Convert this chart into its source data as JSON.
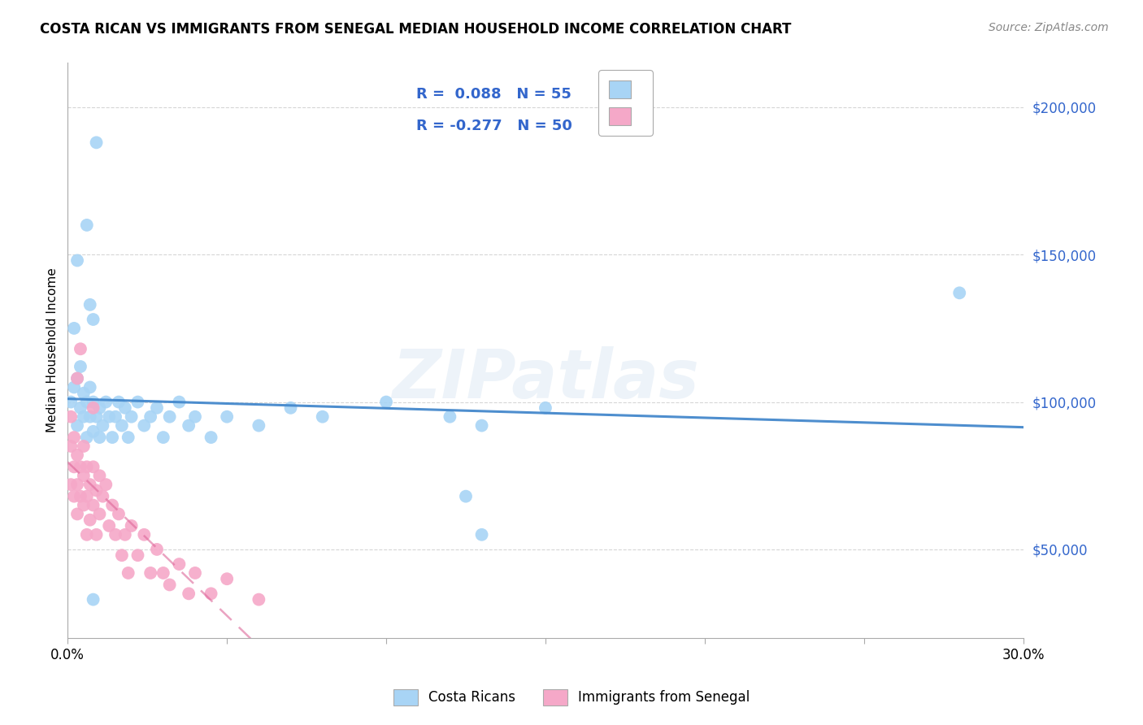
{
  "title": "COSTA RICAN VS IMMIGRANTS FROM SENEGAL MEDIAN HOUSEHOLD INCOME CORRELATION CHART",
  "source": "Source: ZipAtlas.com",
  "ylabel": "Median Household Income",
  "yticks": [
    50000,
    100000,
    150000,
    200000
  ],
  "ytick_labels": [
    "$50,000",
    "$100,000",
    "$150,000",
    "$200,000"
  ],
  "xlim": [
    0.0,
    0.3
  ],
  "ylim": [
    20000,
    215000
  ],
  "legend_r_blue": "R =  0.088",
  "legend_n_blue": "N = 55",
  "legend_r_pink": "R = -0.277",
  "legend_n_pink": "N = 50",
  "blue_color": "#a8d4f5",
  "pink_color": "#f5a8c8",
  "blue_line_color": "#4488cc",
  "pink_line_color": "#dd6699",
  "legend_color": "#3366cc",
  "blue_scatter": [
    [
      0.001,
      100000
    ],
    [
      0.002,
      105000
    ],
    [
      0.002,
      125000
    ],
    [
      0.003,
      92000
    ],
    [
      0.003,
      108000
    ],
    [
      0.004,
      98000
    ],
    [
      0.004,
      112000
    ],
    [
      0.005,
      95000
    ],
    [
      0.005,
      103000
    ],
    [
      0.006,
      88000
    ],
    [
      0.006,
      100000
    ],
    [
      0.007,
      95000
    ],
    [
      0.007,
      105000
    ],
    [
      0.008,
      90000
    ],
    [
      0.008,
      100000
    ],
    [
      0.009,
      95000
    ],
    [
      0.01,
      88000
    ],
    [
      0.01,
      98000
    ],
    [
      0.011,
      92000
    ],
    [
      0.012,
      100000
    ],
    [
      0.013,
      95000
    ],
    [
      0.014,
      88000
    ],
    [
      0.015,
      95000
    ],
    [
      0.016,
      100000
    ],
    [
      0.017,
      92000
    ],
    [
      0.018,
      98000
    ],
    [
      0.019,
      88000
    ],
    [
      0.02,
      95000
    ],
    [
      0.022,
      100000
    ],
    [
      0.024,
      92000
    ],
    [
      0.026,
      95000
    ],
    [
      0.028,
      98000
    ],
    [
      0.03,
      88000
    ],
    [
      0.032,
      95000
    ],
    [
      0.035,
      100000
    ],
    [
      0.038,
      92000
    ],
    [
      0.04,
      95000
    ],
    [
      0.045,
      88000
    ],
    [
      0.05,
      95000
    ],
    [
      0.06,
      92000
    ],
    [
      0.07,
      98000
    ],
    [
      0.08,
      95000
    ],
    [
      0.1,
      100000
    ],
    [
      0.12,
      95000
    ],
    [
      0.13,
      92000
    ],
    [
      0.15,
      98000
    ],
    [
      0.003,
      148000
    ],
    [
      0.006,
      160000
    ],
    [
      0.007,
      133000
    ],
    [
      0.008,
      128000
    ],
    [
      0.28,
      137000
    ],
    [
      0.009,
      188000
    ],
    [
      0.125,
      68000
    ],
    [
      0.008,
      33000
    ],
    [
      0.13,
      55000
    ]
  ],
  "pink_scatter": [
    [
      0.001,
      95000
    ],
    [
      0.001,
      85000
    ],
    [
      0.001,
      72000
    ],
    [
      0.002,
      88000
    ],
    [
      0.002,
      78000
    ],
    [
      0.002,
      68000
    ],
    [
      0.003,
      82000
    ],
    [
      0.003,
      72000
    ],
    [
      0.003,
      62000
    ],
    [
      0.004,
      78000
    ],
    [
      0.004,
      68000
    ],
    [
      0.005,
      85000
    ],
    [
      0.005,
      75000
    ],
    [
      0.005,
      65000
    ],
    [
      0.006,
      78000
    ],
    [
      0.006,
      68000
    ],
    [
      0.006,
      55000
    ],
    [
      0.007,
      72000
    ],
    [
      0.007,
      60000
    ],
    [
      0.008,
      78000
    ],
    [
      0.008,
      65000
    ],
    [
      0.009,
      70000
    ],
    [
      0.009,
      55000
    ],
    [
      0.01,
      75000
    ],
    [
      0.01,
      62000
    ],
    [
      0.011,
      68000
    ],
    [
      0.012,
      72000
    ],
    [
      0.013,
      58000
    ],
    [
      0.014,
      65000
    ],
    [
      0.015,
      55000
    ],
    [
      0.016,
      62000
    ],
    [
      0.017,
      48000
    ],
    [
      0.018,
      55000
    ],
    [
      0.019,
      42000
    ],
    [
      0.02,
      58000
    ],
    [
      0.022,
      48000
    ],
    [
      0.024,
      55000
    ],
    [
      0.026,
      42000
    ],
    [
      0.028,
      50000
    ],
    [
      0.03,
      42000
    ],
    [
      0.032,
      38000
    ],
    [
      0.035,
      45000
    ],
    [
      0.038,
      35000
    ],
    [
      0.04,
      42000
    ],
    [
      0.045,
      35000
    ],
    [
      0.05,
      40000
    ],
    [
      0.06,
      33000
    ],
    [
      0.003,
      108000
    ],
    [
      0.004,
      118000
    ],
    [
      0.008,
      98000
    ]
  ],
  "watermark": "ZIPatlas",
  "background_color": "#ffffff",
  "grid_color": "#cccccc"
}
